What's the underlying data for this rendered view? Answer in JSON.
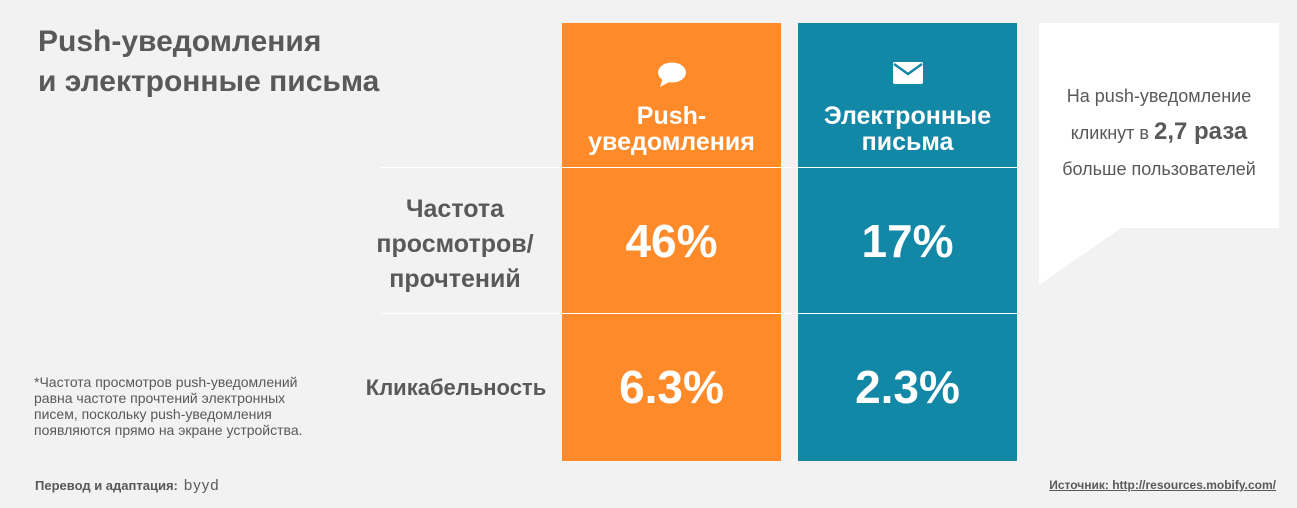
{
  "title": {
    "line1": "Push-уведомления",
    "line2": "и электронные письма"
  },
  "chart_data": {
    "type": "table",
    "columns": [
      {
        "name_line1": "Push-",
        "name_line2": "уведомления",
        "icon": "chat-bubble-icon",
        "color": "#ff8a2a"
      },
      {
        "name_line1": "Электронные",
        "name_line2": "письма",
        "icon": "envelope-icon",
        "color": "#1387a6"
      }
    ],
    "rows": [
      {
        "label_lines": [
          "Частота",
          "просмотров/",
          "прочтений"
        ],
        "values": [
          "46%",
          "17%"
        ]
      },
      {
        "label_lines": [
          "Кликабельность"
        ],
        "values": [
          "6.3%",
          "2.3%"
        ]
      }
    ]
  },
  "callout": {
    "line1": "На push-уведомление",
    "line2_prefix": "кликнут в ",
    "line2_highlight": "2,7 раза",
    "line3": "больше пользователей"
  },
  "footnote": {
    "line1": "*Частота просмотров push-уведомлений",
    "line2": "равна частоте прочтений электронных",
    "line3": "писем, поскольку push-уведомления",
    "line4": "появляются прямо на экране устройства."
  },
  "credit": {
    "label": "Перевод и адаптация:",
    "logo": "byyd"
  },
  "source": "Источник: http://resources.mobify.com/"
}
